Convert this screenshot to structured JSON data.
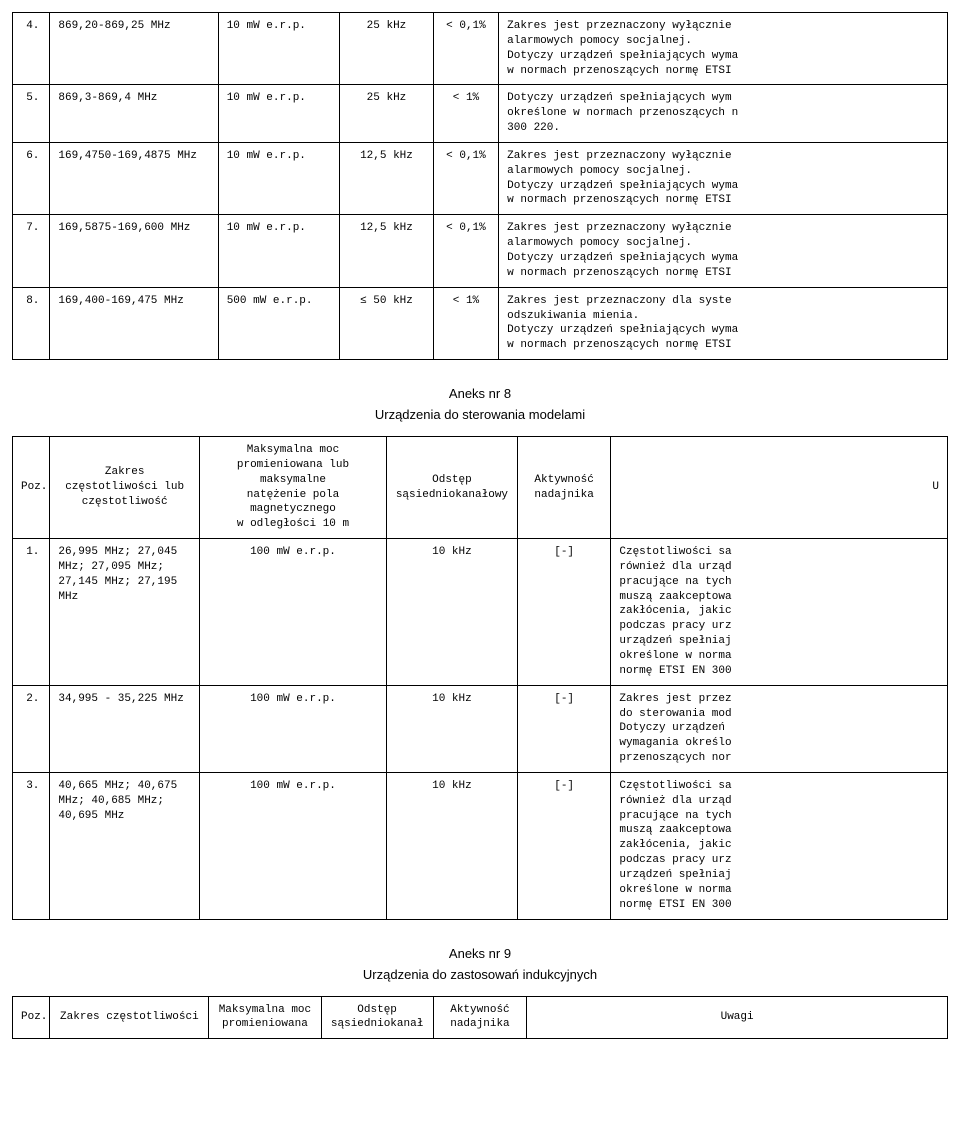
{
  "table1": {
    "rows": [
      {
        "n": "4.",
        "freq": "869,20-869,25 MHz",
        "pwr": "10 mW e.r.p.",
        "spc": "25 kHz",
        "act": "< 0,1%",
        "note": "Zakres jest przeznaczony wyłącznie\nalarmowych pomocy socjalnej.\nDotyczy urządzeń spełniających wyma\nw normach przenoszących normę ETSI"
      },
      {
        "n": "5.",
        "freq": "869,3-869,4 MHz",
        "pwr": "10 mW e.r.p.",
        "spc": "25 kHz",
        "act": "< 1%",
        "note": "Dotyczy urządzeń spełniających wym\nokreślone w normach przenoszących n\n300 220."
      },
      {
        "n": "6.",
        "freq": "169,4750-169,4875 MHz",
        "pwr": "10 mW e.r.p.",
        "spc": "12,5 kHz",
        "act": "< 0,1%",
        "note": "Zakres jest przeznaczony wyłącznie\nalarmowych pomocy socjalnej.\nDotyczy urządzeń spełniających wyma\nw normach przenoszących normę ETSI"
      },
      {
        "n": "7.",
        "freq": "169,5875-169,600 MHz",
        "pwr": "10 mW e.r.p.",
        "spc": "12,5 kHz",
        "act": "< 0,1%",
        "note": "Zakres jest przeznaczony wyłącznie\nalarmowych pomocy socjalnej.\nDotyczy urządzeń spełniających wyma\nw normach przenoszących normę ETSI"
      },
      {
        "n": "8.",
        "freq": "169,400-169,475 MHz",
        "pwr": "500 mW e.r.p.",
        "spc": "≤ 50 kHz",
        "act": "< 1%",
        "note": "Zakres jest przeznaczony dla syste\nodszukiwania mienia.\nDotyczy urządzeń spełniających wyma\nw normach przenoszących normę ETSI"
      }
    ]
  },
  "section8": {
    "title": "Aneks nr 8",
    "subtitle": "Urządzenia do sterowania modelami",
    "header": {
      "c0": "Poz.",
      "c1": "Zakres\nczęstotliwości lub\nczęstotliwość",
      "c2": "Maksymalna moc\npromieniowana lub maksymalne\nnatężenie pola magnetycznego\nw odległości 10 m",
      "c3": "Odstęp\nsąsiedniokanałowy",
      "c4": "Aktywność\nnadajnika",
      "c5": "U"
    },
    "rows": [
      {
        "n": "1.",
        "freq": "26,995 MHz; 27,045\nMHz; 27,095 MHz;\n27,145 MHz; 27,195\nMHz",
        "pwr": "100 mW e.r.p.",
        "spc": "10 kHz",
        "act": "[-]",
        "note": "Częstotliwości sa\nrównież dla urząd\npracujące na tych\nmuszą zaakceptowa\nzakłócenia, jakic\npodczas pracy urz\nurządzeń spełniaj\nokreślone w norma\nnormę ETSI EN 300"
      },
      {
        "n": "2.",
        "freq": "34,995 - 35,225 MHz",
        "pwr": "100 mW e.r.p.",
        "spc": "10 kHz",
        "act": "[-]",
        "note": "Zakres jest przez\ndo sterowania mod\nDotyczy urządzeń\nwymagania określo\nprzenoszących nor"
      },
      {
        "n": "3.",
        "freq": "40,665 MHz; 40,675\nMHz; 40,685 MHz;\n40,695 MHz",
        "pwr": "100 mW e.r.p.",
        "spc": "10 kHz",
        "act": "[-]",
        "note": "Częstotliwości sa\nrównież dla urząd\npracujące na tych\nmuszą zaakceptowa\nzakłócenia, jakic\npodczas pracy urz\nurządzeń spełniaj\nokreślone w norma\nnormę ETSI EN 300"
      }
    ]
  },
  "section9": {
    "title": "Aneks nr 9",
    "subtitle": "Urządzenia do zastosowań indukcyjnych",
    "header": {
      "c0": "Poz.",
      "c1": "Zakres częstotliwości",
      "c2": "Maksymalna moc\npromieniowana",
      "c3": "Odstęp\nsąsiedniokanał",
      "c4": "Aktywność\nnadajnika",
      "c5": "Uwagi"
    }
  }
}
